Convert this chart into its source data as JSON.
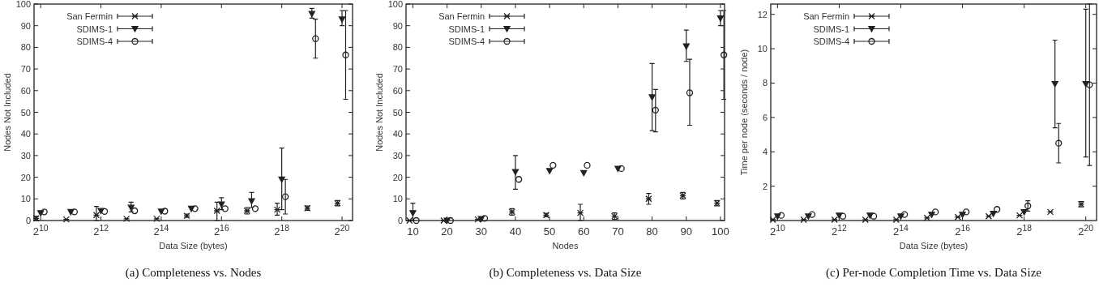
{
  "chart_data": [
    {
      "type": "scatter",
      "title": "(a) Completeness vs. Nodes",
      "xlabel": "Data Size (bytes)",
      "ylabel": "Nodes Not Included",
      "log": "x",
      "legend": "top left",
      "grid": false,
      "xlim": [
        879,
        1336000
      ],
      "xticks": [
        {
          "value": 1024,
          "label": "2$^{10}$"
        },
        {
          "value": 4096,
          "label": "2$^{12}$"
        },
        {
          "value": 16384,
          "label": "2$^{14}$"
        },
        {
          "value": 65536,
          "label": "2$^{16}$"
        },
        {
          "value": 262144,
          "label": "2$^{18}$"
        },
        {
          "value": 1048576,
          "label": "2$^{20}$"
        }
      ],
      "ylim": [
        0,
        100
      ],
      "yticks": [
        0,
        10,
        20,
        30,
        40,
        50,
        60,
        70,
        80,
        90,
        100
      ],
      "series": [
        {
          "name": "San Fermin",
          "color": "#222222",
          "marker": "cross",
          "x": [
            923,
            1845,
            3690,
            7381,
            14762,
            29524,
            59048,
            118096,
            236192,
            472383,
            944767
          ],
          "values": [
            1,
            0.5,
            2.5,
            0.8,
            0.8,
            2.2,
            4.5,
            4.5,
            5,
            5.7,
            8
          ],
          "errors": [
            1,
            null,
            [
              0,
              6.5
            ],
            null,
            null,
            0.8,
            [
              0,
              8.5
            ],
            1.5,
            [
              2.5,
              8
            ],
            1,
            1.2
          ]
        },
        {
          "name": "SDIMS-1",
          "color": "#222222",
          "marker": "triangle",
          "x": [
            1024,
            2048,
            4096,
            8192,
            16384,
            32768,
            65536,
            131072,
            262144,
            524288,
            1048576
          ],
          "values": [
            3.5,
            4,
            4.5,
            6,
            4.2,
            5.5,
            7.5,
            9,
            19,
            95.5,
            93
          ],
          "errors": [
            null,
            null,
            null,
            [
              4,
              8.5
            ],
            null,
            null,
            [
              5,
              10.5
            ],
            [
              6,
              13
            ],
            [
              5,
              33.5
            ],
            [
              93.5,
              98
            ],
            [
              90,
              97
            ]
          ]
        },
        {
          "name": "SDIMS-4",
          "color": "#222222",
          "marker": "circle",
          "x": [
            1113,
            2226,
            4452,
            8905,
            17809,
            35619,
            71238,
            142475,
            284950,
            569901,
            1139802
          ],
          "values": [
            4,
            4,
            4.2,
            4.5,
            4.3,
            5.5,
            5.5,
            5.5,
            11,
            84,
            76.5
          ],
          "errors": [
            null,
            null,
            null,
            null,
            null,
            null,
            null,
            null,
            [
              3,
              19
            ],
            [
              75,
              93
            ],
            [
              56,
              97
            ]
          ]
        }
      ]
    },
    {
      "type": "scatter",
      "title": "(b) Completeness vs. Data Size",
      "xlabel": "Nodes",
      "ylabel": "Nodes Not Included",
      "legend": "top left",
      "grid": false,
      "xlim": [
        8,
        101.2
      ],
      "xticks": [
        10,
        20,
        30,
        40,
        50,
        60,
        70,
        80,
        90,
        100
      ],
      "ylim": [
        0,
        100
      ],
      "yticks": [
        0,
        10,
        20,
        30,
        40,
        50,
        60,
        70,
        80,
        90,
        100
      ],
      "series": [
        {
          "name": "San Fermin",
          "color": "#222222",
          "marker": "cross",
          "x": [
            9,
            19,
            29,
            39,
            49,
            59,
            69,
            79,
            89,
            99
          ],
          "values": [
            0,
            0,
            0.5,
            4,
            2.5,
            3.5,
            2,
            10,
            11.5,
            8
          ],
          "errors": [
            null,
            null,
            null,
            1.5,
            0.8,
            [
              0,
              7.5
            ],
            1.5,
            2.5,
            1.5,
            1.2
          ]
        },
        {
          "name": "SDIMS-1",
          "color": "#222222",
          "marker": "triangle",
          "x": [
            10,
            20,
            30,
            40,
            50,
            60,
            70,
            80,
            90,
            100
          ],
          "values": [
            3.5,
            0,
            0.8,
            22.5,
            23,
            22,
            24,
            57,
            80.5,
            93.5
          ],
          "errors": [
            [
              0,
              8
            ],
            null,
            null,
            [
              14.5,
              30
            ],
            null,
            null,
            null,
            [
              41.5,
              72.5
            ],
            [
              73.5,
              88
            ],
            [
              90,
              97
            ]
          ]
        },
        {
          "name": "SDIMS-4",
          "color": "#222222",
          "marker": "circle",
          "x": [
            11,
            21,
            31,
            41,
            51,
            61,
            71,
            81,
            91,
            101
          ],
          "values": [
            0,
            0,
            1,
            19,
            25.5,
            25.5,
            24,
            51,
            59,
            76.5
          ],
          "errors": [
            null,
            null,
            null,
            null,
            null,
            null,
            null,
            [
              41,
              60.5
            ],
            [
              44,
              74.5
            ],
            [
              56,
              97
            ]
          ]
        }
      ]
    },
    {
      "type": "scatter",
      "title": "(c) Per-node Completion Time vs. Data Size",
      "xlabel": "Data Size (bytes)",
      "ylabel": "Time per node (seconds / node)",
      "log": "x",
      "legend": "top left",
      "grid": false,
      "xlim": [
        879,
        1336000
      ],
      "xticks": [
        {
          "value": 1024,
          "label": "2$^{10}$"
        },
        {
          "value": 4096,
          "label": "2$^{12}$"
        },
        {
          "value": 16384,
          "label": "2$^{14}$"
        },
        {
          "value": 65536,
          "label": "2$^{16}$"
        },
        {
          "value": 262144,
          "label": "2$^{18}$"
        },
        {
          "value": 1048576,
          "label": "2$^{20}$"
        }
      ],
      "ylim": [
        0,
        12.6
      ],
      "yticks": [
        2,
        4,
        6,
        8,
        10,
        12
      ],
      "series": [
        {
          "name": "San Fermin",
          "color": "#222222",
          "marker": "cross",
          "x": [
            923,
            1845,
            3690,
            7381,
            14762,
            29524,
            59048,
            118096,
            236192,
            472383,
            944767
          ],
          "values": [
            0.05,
            0.05,
            0.05,
            0.05,
            0.05,
            0.15,
            0.2,
            0.25,
            0.3,
            0.5,
            0.95
          ],
          "errors": [
            null,
            null,
            null,
            null,
            null,
            null,
            null,
            null,
            null,
            null,
            0.15
          ]
        },
        {
          "name": "SDIMS-1",
          "color": "#222222",
          "marker": "triangle",
          "x": [
            1024,
            2048,
            4096,
            8192,
            16384,
            32768,
            65536,
            131072,
            262144,
            524288,
            1048576
          ],
          "values": [
            0.25,
            0.25,
            0.3,
            0.3,
            0.25,
            0.35,
            0.35,
            0.4,
            0.5,
            7.95,
            7.95
          ],
          "errors": [
            null,
            null,
            null,
            null,
            null,
            null,
            null,
            null,
            null,
            [
              5.4,
              10.5
            ],
            [
              3.7,
              12.3
            ]
          ]
        },
        {
          "name": "SDIMS-4",
          "color": "#222222",
          "marker": "circle",
          "x": [
            1113,
            2226,
            4452,
            8905,
            17809,
            35619,
            71238,
            142475,
            284950,
            569901,
            1139802
          ],
          "values": [
            0.3,
            0.35,
            0.25,
            0.25,
            0.35,
            0.5,
            0.5,
            0.65,
            0.85,
            4.5,
            7.9
          ],
          "errors": [
            null,
            null,
            null,
            null,
            null,
            null,
            null,
            null,
            [
              0.55,
              1.15
            ],
            [
              3.35,
              5.65
            ],
            [
              3.2,
              12.6
            ]
          ]
        }
      ]
    }
  ]
}
